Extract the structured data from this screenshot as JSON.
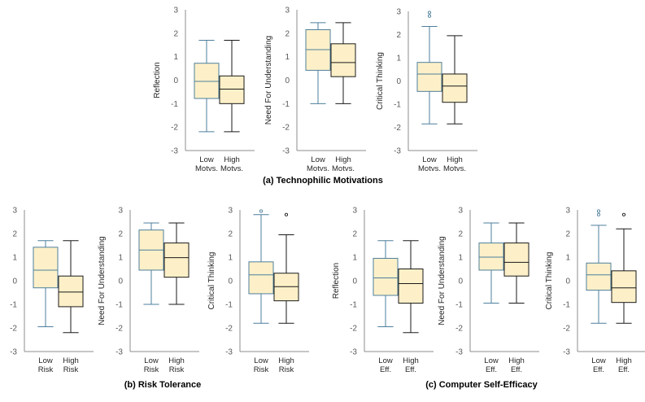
{
  "captions": {
    "a": "(a) Technophilic Motivations",
    "b": "(b) Risk Tolerance",
    "c": "(c) Computer Self-Efficacy"
  },
  "colors": {
    "box_fill": "#fdf0c8",
    "low_stroke": "#4d7f9c",
    "high_stroke": "#1a1a1a",
    "axis": "#8c8c8c",
    "tick_text": "#595959",
    "label_text": "#262626"
  },
  "chart_data": [
    {
      "id": "a1",
      "type": "box",
      "group": "a",
      "ylabel": "Reflection",
      "ylim": [
        -3,
        3
      ],
      "yticks": [
        3,
        2,
        1,
        0,
        -1,
        -2,
        -3
      ],
      "categories": [
        [
          "Low",
          "Motvs."
        ],
        [
          "High",
          "Motvs."
        ]
      ],
      "series": [
        {
          "name": "Low Motvs.",
          "stats": {
            "min": -2.2,
            "q1": -0.78,
            "median": -0.05,
            "q3": 0.72,
            "max": 1.7
          },
          "outliers": []
        },
        {
          "name": "High Motvs.",
          "stats": {
            "min": -2.2,
            "q1": -1.0,
            "median": -0.38,
            "q3": 0.18,
            "max": 1.7
          },
          "outliers": []
        }
      ]
    },
    {
      "id": "a2",
      "type": "box",
      "group": "a",
      "ylabel": "Need For Understanding",
      "ylim": [
        -3,
        3
      ],
      "yticks": [
        3,
        2,
        1,
        0,
        -1,
        -2,
        -3
      ],
      "categories": [
        [
          "Low",
          "Motvs."
        ],
        [
          "High",
          "Motvs."
        ]
      ],
      "series": [
        {
          "name": "Low Motvs.",
          "stats": {
            "min": -1.0,
            "q1": 0.42,
            "median": 1.3,
            "q3": 2.15,
            "max": 2.45
          },
          "outliers": []
        },
        {
          "name": "High Motvs.",
          "stats": {
            "min": -1.0,
            "q1": 0.15,
            "median": 0.75,
            "q3": 1.55,
            "max": 2.45
          },
          "outliers": []
        }
      ]
    },
    {
      "id": "a3",
      "type": "box",
      "group": "a",
      "ylabel": "Critical Thinking",
      "ylim": [
        -3,
        3
      ],
      "yticks": [
        3,
        2,
        1,
        0,
        -1,
        -2,
        -3
      ],
      "categories": [
        [
          "Low",
          "Motvs."
        ],
        [
          "High",
          "Motvs."
        ]
      ],
      "series": [
        {
          "name": "Low Motvs.",
          "stats": {
            "min": -1.85,
            "q1": -0.45,
            "median": 0.3,
            "q3": 0.8,
            "max": 2.35
          },
          "outliers": [
            2.8,
            2.95
          ]
        },
        {
          "name": "High Motvs.",
          "stats": {
            "min": -1.85,
            "q1": -0.92,
            "median": -0.22,
            "q3": 0.3,
            "max": 1.95
          },
          "outliers": []
        }
      ]
    },
    {
      "id": "b1",
      "type": "box",
      "group": "b",
      "ylabel": "Reflection",
      "ylim": [
        -3,
        3
      ],
      "yticks": [
        3,
        2,
        1,
        0,
        -1,
        -2,
        -3
      ],
      "categories": [
        [
          "Low",
          "Risk"
        ],
        [
          "High",
          "Risk"
        ]
      ],
      "series": [
        {
          "name": "Low Risk",
          "stats": {
            "min": -1.95,
            "q1": -0.3,
            "median": 0.45,
            "q3": 1.42,
            "max": 1.7
          },
          "outliers": []
        },
        {
          "name": "High Risk",
          "stats": {
            "min": -2.2,
            "q1": -1.1,
            "median": -0.48,
            "q3": 0.2,
            "max": 1.7
          },
          "outliers": []
        }
      ]
    },
    {
      "id": "b2",
      "type": "box",
      "group": "b",
      "ylabel": "Need For Understanding",
      "ylim": [
        -3,
        3
      ],
      "yticks": [
        3,
        2,
        1,
        0,
        -1,
        -2,
        -3
      ],
      "categories": [
        [
          "Low",
          "Risk"
        ],
        [
          "High",
          "Risk"
        ]
      ],
      "series": [
        {
          "name": "Low Risk",
          "stats": {
            "min": -1.0,
            "q1": 0.45,
            "median": 1.3,
            "q3": 2.15,
            "max": 2.45
          },
          "outliers": []
        },
        {
          "name": "High Risk",
          "stats": {
            "min": -1.0,
            "q1": 0.15,
            "median": 0.98,
            "q3": 1.6,
            "max": 2.45
          },
          "outliers": []
        }
      ]
    },
    {
      "id": "b3",
      "type": "box",
      "group": "b",
      "ylabel": "Critical Thinking",
      "ylim": [
        -3,
        3
      ],
      "yticks": [
        3,
        2,
        1,
        0,
        -1,
        -2,
        -3
      ],
      "categories": [
        [
          "Low",
          "Risk"
        ],
        [
          "High",
          "Risk"
        ]
      ],
      "series": [
        {
          "name": "Low Risk",
          "stats": {
            "min": -1.8,
            "q1": -0.55,
            "median": 0.25,
            "q3": 0.8,
            "max": 2.8
          },
          "outliers": [
            2.95
          ]
        },
        {
          "name": "High Risk",
          "stats": {
            "min": -1.8,
            "q1": -0.85,
            "median": -0.25,
            "q3": 0.32,
            "max": 1.95
          },
          "outliers": [
            2.8
          ]
        }
      ]
    },
    {
      "id": "c1",
      "type": "box",
      "group": "c",
      "ylabel": "Reflection",
      "ylim": [
        -3,
        3
      ],
      "yticks": [
        3,
        2,
        1,
        0,
        -1,
        -2,
        -3
      ],
      "categories": [
        [
          "Low",
          "Eff."
        ],
        [
          "High",
          "Eff."
        ]
      ],
      "series": [
        {
          "name": "Low Eff.",
          "stats": {
            "min": -1.95,
            "q1": -0.62,
            "median": 0.12,
            "q3": 0.95,
            "max": 1.7
          },
          "outliers": []
        },
        {
          "name": "High Eff.",
          "stats": {
            "min": -2.2,
            "q1": -0.95,
            "median": -0.12,
            "q3": 0.5,
            "max": 1.7
          },
          "outliers": []
        }
      ]
    },
    {
      "id": "c2",
      "type": "box",
      "group": "c",
      "ylabel": "Need For Understanding",
      "ylim": [
        -3,
        3
      ],
      "yticks": [
        3,
        2,
        1,
        0,
        -1,
        -2,
        -3
      ],
      "categories": [
        [
          "Low",
          "Eff."
        ],
        [
          "High",
          "Eff."
        ]
      ],
      "series": [
        {
          "name": "Low Eff.",
          "stats": {
            "min": -0.95,
            "q1": 0.45,
            "median": 1.0,
            "q3": 1.6,
            "max": 2.45
          },
          "outliers": []
        },
        {
          "name": "High Eff.",
          "stats": {
            "min": -0.95,
            "q1": 0.2,
            "median": 0.78,
            "q3": 1.6,
            "max": 2.45
          },
          "outliers": []
        }
      ]
    },
    {
      "id": "c3",
      "type": "box",
      "group": "c",
      "ylabel": "Critical Thinking",
      "ylim": [
        -3,
        3
      ],
      "yticks": [
        3,
        2,
        1,
        0,
        -1,
        -2,
        -3
      ],
      "categories": [
        [
          "Low",
          "Eff."
        ],
        [
          "High",
          "Eff."
        ]
      ],
      "series": [
        {
          "name": "Low Eff.",
          "stats": {
            "min": -1.8,
            "q1": -0.4,
            "median": 0.25,
            "q3": 0.75,
            "max": 2.35
          },
          "outliers": [
            2.8,
            2.95
          ]
        },
        {
          "name": "High Eff.",
          "stats": {
            "min": -1.8,
            "q1": -0.92,
            "median": -0.3,
            "q3": 0.42,
            "max": 2.2
          },
          "outliers": [
            2.8
          ]
        }
      ]
    }
  ]
}
